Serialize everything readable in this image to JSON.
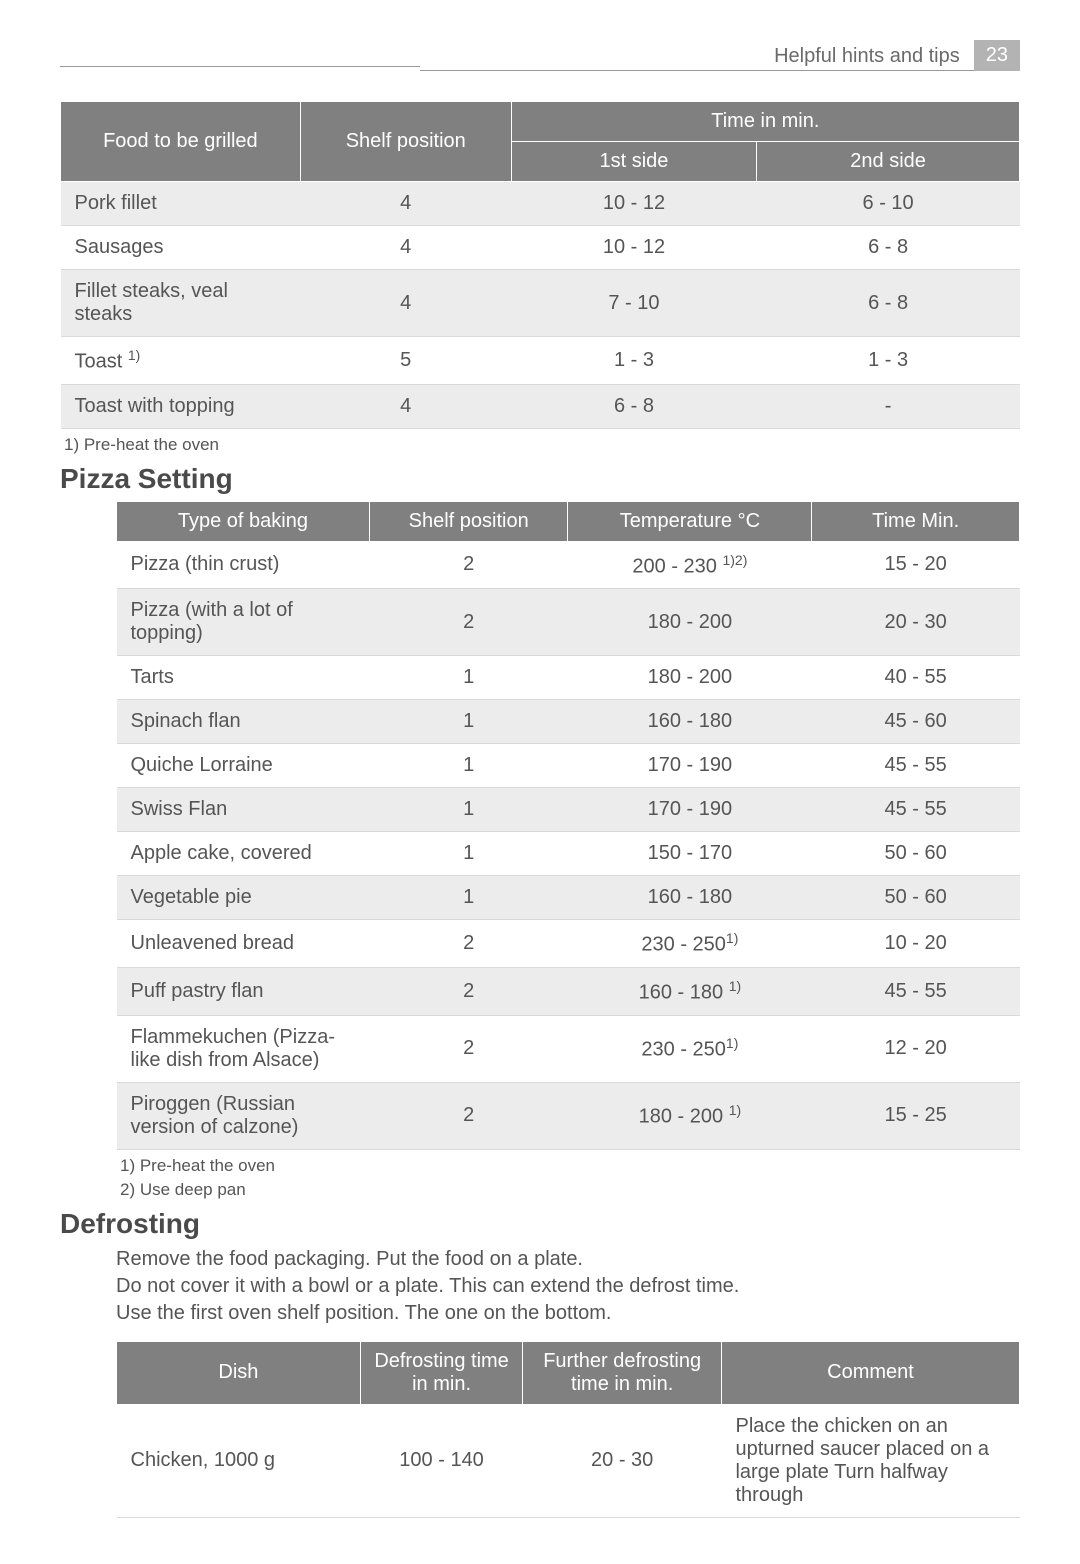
{
  "header": {
    "title": "Helpful hints and tips",
    "page": "23"
  },
  "grill_table": {
    "headers": {
      "food": "Food to be grilled",
      "shelf": "Shelf position",
      "time": "Time in min.",
      "side1": "1st side",
      "side2": "2nd side"
    },
    "rows": [
      {
        "food": "Pork fillet",
        "shelf": "4",
        "s1": "10 - 12",
        "s2": "6 - 10",
        "alt": true
      },
      {
        "food": "Sausages",
        "shelf": "4",
        "s1": "10 - 12",
        "s2": "6 - 8",
        "alt": false
      },
      {
        "food": "Fillet steaks, veal steaks",
        "shelf": "4",
        "s1": "7 - 10",
        "s2": "6 - 8",
        "alt": true
      },
      {
        "food": "Toast ",
        "sup": "1)",
        "shelf": "5",
        "s1": "1 - 3",
        "s2": "1 - 3",
        "alt": false
      },
      {
        "food": "Toast with topping",
        "shelf": "4",
        "s1": "6 - 8",
        "s2": "-",
        "alt": true
      }
    ],
    "footnote": "1) Pre-heat the oven"
  },
  "pizza": {
    "heading": "Pizza Setting",
    "headers": {
      "type": "Type of baking",
      "shelf": "Shelf position",
      "temp": "Temperature °C",
      "time": "Time Min."
    },
    "rows": [
      {
        "type": "Pizza (thin crust)",
        "shelf": "2",
        "temp": "200 - 230 ",
        "tsup": "1)2)",
        "time": "15 - 20",
        "alt": false
      },
      {
        "type": "Pizza (with a lot of topping)",
        "shelf": "2",
        "temp": "180 - 200",
        "time": "20 - 30",
        "alt": true
      },
      {
        "type": "Tarts",
        "shelf": "1",
        "temp": "180 - 200",
        "time": "40 - 55",
        "alt": false
      },
      {
        "type": "Spinach flan",
        "shelf": "1",
        "temp": "160 - 180",
        "time": "45 - 60",
        "alt": true
      },
      {
        "type": "Quiche Lorraine",
        "shelf": "1",
        "temp": "170 - 190",
        "time": "45 - 55",
        "alt": false
      },
      {
        "type": "Swiss Flan",
        "shelf": "1",
        "temp": "170 - 190",
        "time": "45 - 55",
        "alt": true
      },
      {
        "type": "Apple cake, covered",
        "shelf": "1",
        "temp": "150 - 170",
        "time": "50 - 60",
        "alt": false
      },
      {
        "type": "Vegetable pie",
        "shelf": "1",
        "temp": "160 - 180",
        "time": "50 - 60",
        "alt": true
      },
      {
        "type": "Unleavened bread",
        "shelf": "2",
        "temp": "230 - 250",
        "tsup": "1)",
        "time": "10 - 20",
        "alt": false
      },
      {
        "type": "Puff pastry flan",
        "shelf": "2",
        "temp": "160 - 180 ",
        "tsup": "1)",
        "time": "45 - 55",
        "alt": true
      },
      {
        "type": "Flammekuchen (Pizza-like dish from Alsace)",
        "shelf": "2",
        "temp": "230 - 250",
        "tsup": "1)",
        "time": "12 - 20",
        "alt": false
      },
      {
        "type": "Piroggen (Russian version of calzone)",
        "shelf": "2",
        "temp": "180 - 200 ",
        "tsup": "1)",
        "time": "15 - 25",
        "alt": true
      }
    ],
    "footnote1": "1) Pre-heat the oven",
    "footnote2": "2) Use deep pan"
  },
  "defrost": {
    "heading": "Defrosting",
    "body": "Remove the food packaging. Put the food on a plate.\nDo not cover it with a bowl or a plate. This can extend the defrost time.\nUse the first oven shelf position. The one on the bottom.",
    "headers": {
      "dish": "Dish",
      "dtime": "Defrosting time in min.",
      "ftime": "Further defrosting time in min.",
      "comment": "Comment"
    },
    "rows": [
      {
        "dish": "Chicken, 1000 g",
        "dtime": "100 - 140",
        "ftime": "20 - 30",
        "comment": "Place the chicken on an upturned saucer placed on a large plate Turn halfway through"
      }
    ]
  }
}
